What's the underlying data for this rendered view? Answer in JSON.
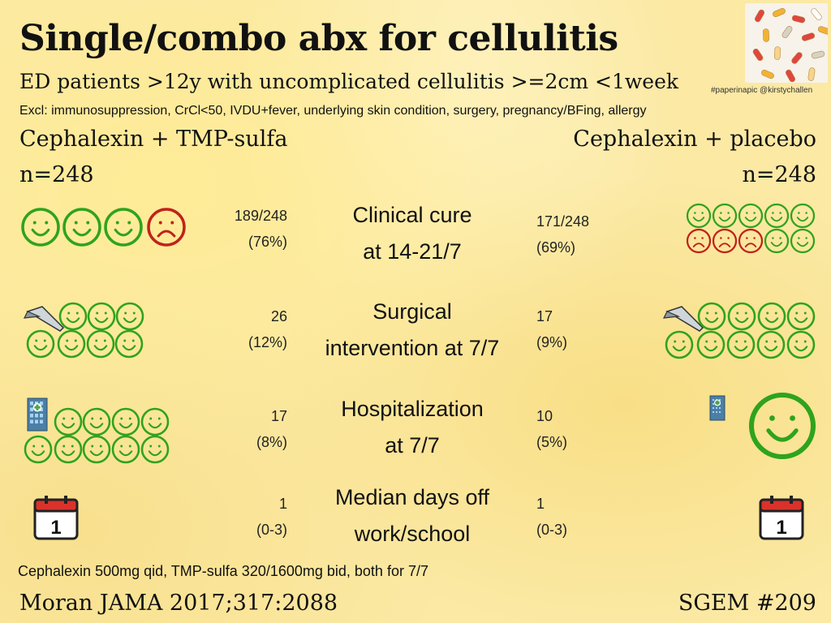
{
  "title": "Single/combo abx for cellulitis",
  "subtitle": "ED patients >12y with uncomplicated cellulitis >=2cm <1week",
  "exclusions": "Excl: immunosuppression, CrCl<50, IVDU+fever, underlying skin condition, surgery, pregnancy/BFing, allergy",
  "hashtag": "#paperinapic @kirstychallen",
  "arms": {
    "left": {
      "name": "Cephalexin + TMP-sulfa",
      "n": "n=248"
    },
    "right": {
      "name": "Cephalexin + placebo",
      "n": "n=248"
    }
  },
  "outcomes": [
    {
      "label_line1": "Clinical cure",
      "label_line2": "at 14-21/7",
      "left_value": "189/248",
      "left_pct": "(76%)",
      "right_value": "171/248",
      "right_pct": "(69%)"
    },
    {
      "label_line1": "Surgical",
      "label_line2": "intervention at 7/7",
      "left_value": "26",
      "left_pct": "(12%)",
      "right_value": "17",
      "right_pct": "(9%)"
    },
    {
      "label_line1": "Hospitalization",
      "label_line2": "at 7/7",
      "left_value": "17",
      "left_pct": "(8%)",
      "right_value": "10",
      "right_pct": "(5%)"
    },
    {
      "label_line1": "Median days off",
      "label_line2": "work/school",
      "left_value": "1",
      "left_pct": "(0-3)",
      "right_value": "1",
      "right_pct": "(0-3)"
    }
  ],
  "calendar_number": "1",
  "dosing": "Cephalexin 500mg qid, TMP-sulfa 320/1600mg bid, both for 7/7",
  "reference": "Moran JAMA 2017;317:2088",
  "sgem": "SGEM #209",
  "colors": {
    "happy": "#2fa31d",
    "sad": "#c0221c",
    "calendar_red": "#d9322b"
  }
}
